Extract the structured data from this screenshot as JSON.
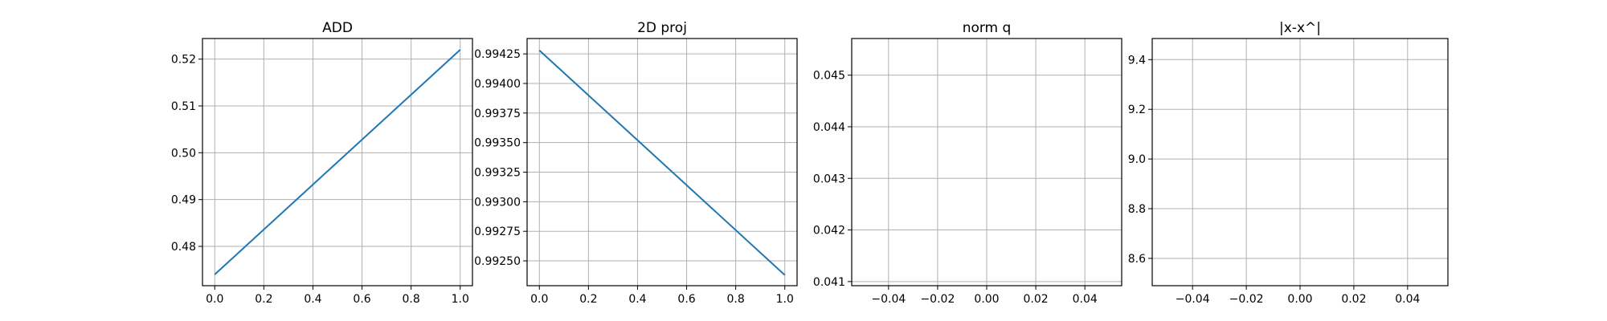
{
  "chart_data": [
    {
      "type": "line",
      "title": "ADD",
      "xlabel": "",
      "ylabel": "",
      "xlim": [
        -0.05,
        1.05
      ],
      "ylim": [
        0.4716,
        0.5244
      ],
      "xticks": [
        0.0,
        0.2,
        0.4,
        0.6,
        0.8,
        1.0
      ],
      "xtick_labels": [
        "0.0",
        "0.2",
        "0.4",
        "0.6",
        "0.8",
        "1.0"
      ],
      "yticks": [
        0.48,
        0.49,
        0.5,
        0.51,
        0.52
      ],
      "ytick_labels": [
        "0.48",
        "0.49",
        "0.50",
        "0.51",
        "0.52"
      ],
      "grid": true,
      "series": [
        {
          "x": [
            0.0,
            1.0
          ],
          "y": [
            0.474,
            0.522
          ],
          "color": "#1f77b4"
        }
      ]
    },
    {
      "type": "line",
      "title": "2D proj",
      "xlabel": "",
      "ylabel": "",
      "xlim": [
        -0.05,
        1.05
      ],
      "ylim": [
        0.99229,
        0.99438
      ],
      "xticks": [
        0.0,
        0.2,
        0.4,
        0.6,
        0.8,
        1.0
      ],
      "xtick_labels": [
        "0.0",
        "0.2",
        "0.4",
        "0.6",
        "0.8",
        "1.0"
      ],
      "yticks": [
        0.9925,
        0.99275,
        0.993,
        0.99325,
        0.9935,
        0.99375,
        0.994,
        0.99425
      ],
      "ytick_labels": [
        "0.99250",
        "0.99275",
        "0.99300",
        "0.99325",
        "0.99350",
        "0.99375",
        "0.99400",
        "0.99425"
      ],
      "grid": true,
      "series": [
        {
          "x": [
            0.0,
            1.0
          ],
          "y": [
            0.99428,
            0.99238
          ],
          "color": "#1f77b4"
        }
      ]
    },
    {
      "type": "line",
      "title": "norm q",
      "xlabel": "",
      "ylabel": "",
      "xlim": [
        -0.055,
        0.055
      ],
      "ylim": [
        0.04092,
        0.04571
      ],
      "xticks": [
        -0.04,
        -0.02,
        0.0,
        0.02,
        0.04
      ],
      "xtick_labels": [
        "−0.04",
        "−0.02",
        "0.00",
        "0.02",
        "0.04"
      ],
      "yticks": [
        0.041,
        0.042,
        0.043,
        0.044,
        0.045
      ],
      "ytick_labels": [
        "0.041",
        "0.042",
        "0.043",
        "0.044",
        "0.045"
      ],
      "grid": true,
      "series": []
    },
    {
      "type": "line",
      "title": "|x-x^|",
      "xlabel": "",
      "ylabel": "",
      "xlim": [
        -0.055,
        0.055
      ],
      "ylim": [
        8.49,
        9.485
      ],
      "xticks": [
        -0.04,
        -0.02,
        0.0,
        0.02,
        0.04
      ],
      "xtick_labels": [
        "−0.04",
        "−0.02",
        "0.00",
        "0.02",
        "0.04"
      ],
      "yticks": [
        8.6,
        8.8,
        9.0,
        9.2,
        9.4
      ],
      "ytick_labels": [
        "8.6",
        "8.8",
        "9.0",
        "9.2",
        "9.4"
      ],
      "grid": true,
      "series": []
    }
  ]
}
